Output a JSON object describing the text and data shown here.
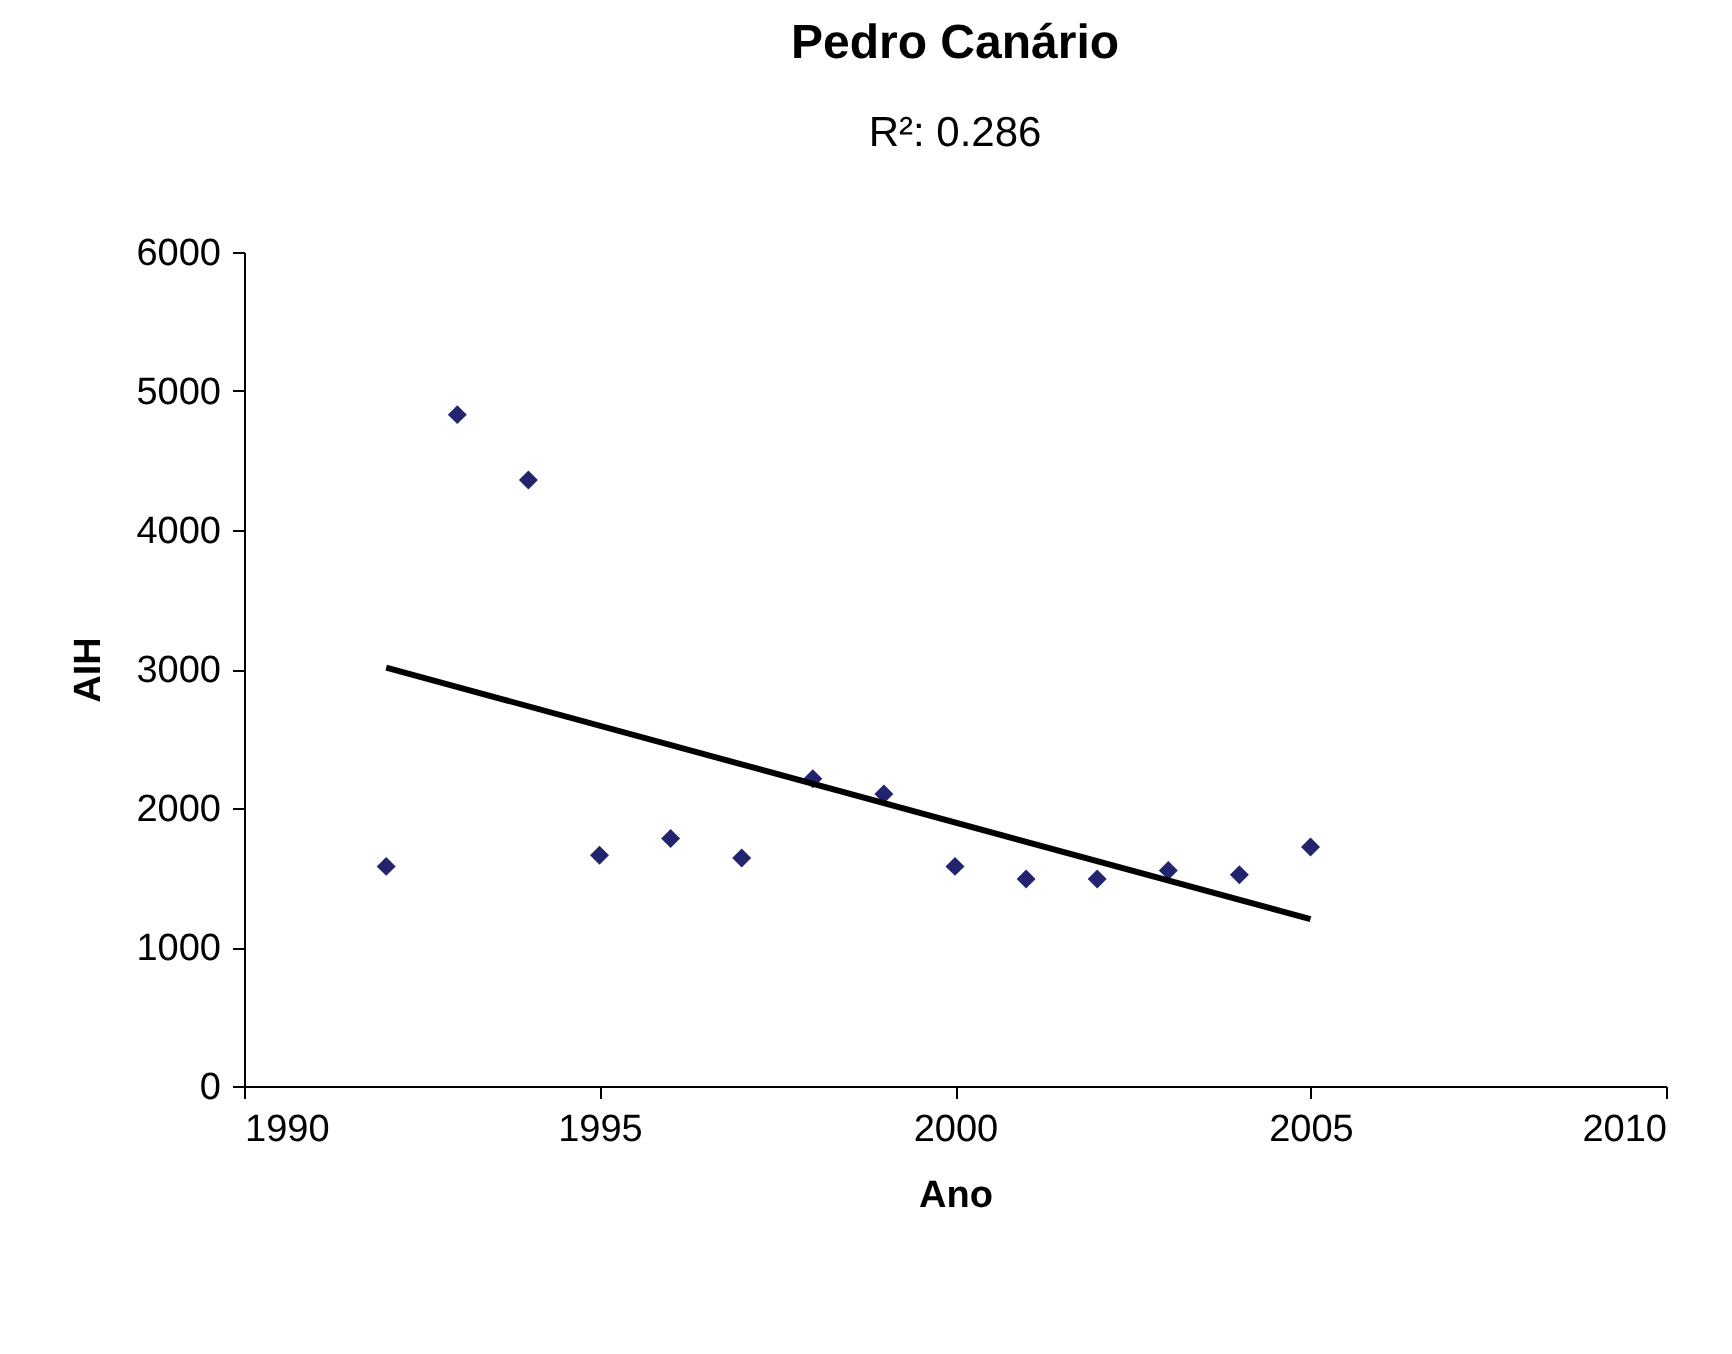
{
  "chart_data": {
    "type": "scatter",
    "title": "Pedro Canário",
    "subtitle": "R²: 0.286",
    "xlabel": "Ano",
    "ylabel": "AIH",
    "xlim": [
      1990,
      2010
    ],
    "xticks": [
      1990,
      1995,
      2000,
      2005,
      2010
    ],
    "ylim": [
      0,
      6000
    ],
    "yticks": [
      0,
      1000,
      2000,
      3000,
      4000,
      5000,
      6000
    ],
    "marker": "diamond",
    "series": [
      {
        "color": "#23236e",
        "x": [
          1992,
          1993,
          1994,
          1995,
          1996,
          1997,
          1998,
          1999,
          2000,
          2001,
          2002,
          2003,
          2004,
          2005
        ],
        "values": [
          1580,
          4830,
          4360,
          1660,
          1780,
          1640,
          2210,
          2100,
          1580,
          1490,
          1490,
          1550,
          1520,
          1720
        ]
      },
      {
        "type": "line",
        "marker": "none",
        "color": "#000000",
        "x": [
          1992,
          2005
        ],
        "values": [
          3010,
          1200
        ]
      }
    ]
  }
}
